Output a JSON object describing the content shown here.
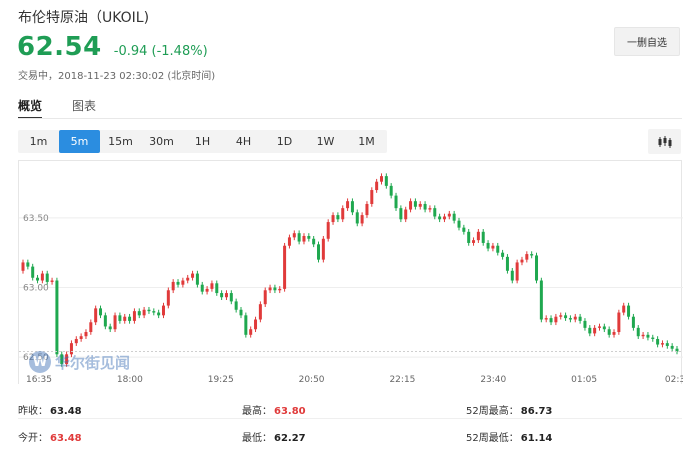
{
  "header": {
    "title": "布伦特原油（UKOIL)",
    "price": "62.54",
    "change": "-0.94 (-1.48%)",
    "status": "交易中，2018-11-23 02:30:02 (北京时间)",
    "watch_button": "一删自选"
  },
  "view_tabs": [
    {
      "label": "概览",
      "active": true
    },
    {
      "label": "图表",
      "active": false
    }
  ],
  "intervals": [
    {
      "label": "1m",
      "active": false
    },
    {
      "label": "5m",
      "active": true
    },
    {
      "label": "15m",
      "active": false
    },
    {
      "label": "30m",
      "active": false
    },
    {
      "label": "1H",
      "active": false
    },
    {
      "label": "4H",
      "active": false
    },
    {
      "label": "1D",
      "active": false
    },
    {
      "label": "1W",
      "active": false
    },
    {
      "label": "1M",
      "active": false
    }
  ],
  "chart_type_icon": "candlestick-icon",
  "watermark": {
    "badge": "W",
    "text": "华尔街见闻"
  },
  "colors": {
    "up": "#e03a3a",
    "down": "#1fa84f",
    "accent": "#2b8de0",
    "price": "#1f9d55"
  },
  "chart_data": {
    "type": "candlestick",
    "y_ticks": [
      "63.50",
      "63.00",
      "62.50"
    ],
    "ylim": [
      62.4,
      63.88
    ],
    "x_ticks": [
      "16:35",
      "18:00",
      "19:25",
      "20:50",
      "22:15",
      "23:40",
      "01:05",
      "02:3"
    ],
    "last_price_line": 62.54,
    "closes": [
      63.18,
      63.15,
      63.07,
      63.05,
      63.1,
      63.04,
      63.05,
      62.52,
      62.45,
      62.52,
      62.6,
      62.63,
      62.65,
      62.68,
      62.75,
      62.85,
      62.8,
      62.72,
      62.7,
      62.8,
      62.76,
      62.79,
      62.76,
      62.83,
      62.8,
      62.84,
      62.83,
      62.82,
      62.8,
      62.87,
      62.98,
      63.04,
      63.02,
      63.05,
      63.07,
      63.1,
      63.02,
      62.97,
      62.99,
      63.03,
      62.96,
      62.93,
      62.96,
      62.9,
      62.84,
      62.8,
      62.66,
      62.7,
      62.77,
      62.88,
      62.98,
      63.0,
      62.98,
      62.99,
      63.3,
      63.36,
      63.39,
      63.33,
      63.37,
      63.35,
      63.31,
      63.2,
      63.35,
      63.47,
      63.52,
      63.49,
      63.57,
      63.62,
      63.54,
      63.46,
      63.52,
      63.6,
      63.7,
      63.76,
      63.8,
      63.73,
      63.66,
      63.57,
      63.49,
      63.56,
      63.62,
      63.58,
      63.6,
      63.56,
      63.57,
      63.51,
      63.49,
      63.51,
      63.53,
      63.48,
      63.43,
      63.4,
      63.32,
      63.34,
      63.4,
      63.32,
      63.28,
      63.3,
      63.25,
      63.22,
      63.12,
      63.05,
      63.18,
      63.2,
      63.24,
      63.23,
      63.05,
      62.77,
      62.78,
      62.75,
      62.79,
      62.8,
      62.78,
      62.77,
      62.79,
      62.76,
      62.71,
      62.67,
      62.71,
      62.72,
      62.7,
      62.66,
      62.68,
      62.82,
      62.87,
      62.79,
      62.71,
      62.65,
      62.66,
      62.64,
      62.63,
      62.59,
      62.6,
      62.58,
      62.56,
      62.54
    ]
  },
  "stats": [
    {
      "label": "昨收：",
      "value": "63.48",
      "color": "dark"
    },
    {
      "label": "最高：",
      "value": "63.80",
      "color": "red"
    },
    {
      "label": "52周最高：",
      "value": "86.73",
      "color": "dark"
    },
    {
      "label": "今开：",
      "value": "63.48",
      "color": "red"
    },
    {
      "label": "最低：",
      "value": "62.27",
      "color": "dark"
    },
    {
      "label": "52周最低：",
      "value": "61.14",
      "color": "dark"
    }
  ]
}
